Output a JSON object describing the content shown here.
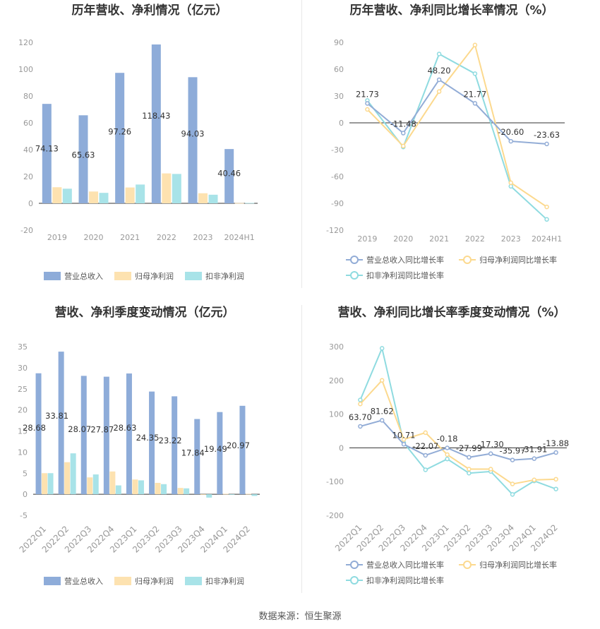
{
  "source_label": "数据来源：恒生聚源",
  "colors": {
    "revenue": "#8eacd9",
    "parent": "#fde2b0",
    "deducted": "#a8e3e8",
    "revenue_line": "#92acd6",
    "parent_line": "#fcd98e",
    "deducted_line": "#8fdbe0"
  },
  "chart_data": [
    {
      "type": "bar",
      "title": "历年营收、净利情况（亿元）",
      "categories": [
        "2019",
        "2020",
        "2021",
        "2022",
        "2023",
        "2024H1"
      ],
      "ylim": [
        -20,
        120
      ],
      "yticks": [
        -20,
        0,
        20,
        40,
        60,
        80,
        100,
        120
      ],
      "series": [
        {
          "name": "营业总收入",
          "values": [
            74.13,
            65.63,
            97.26,
            118.43,
            94.03,
            40.46
          ],
          "labels": [
            "74.13",
            "65.63",
            "97.26",
            "118.43",
            "94.03",
            "40.46"
          ]
        },
        {
          "name": "归母净利润",
          "values": [
            12,
            8.8,
            11.8,
            22.3,
            7.5,
            0.2
          ]
        },
        {
          "name": "扣非净利润",
          "values": [
            10.9,
            7.8,
            14,
            21.9,
            6.4,
            0.3
          ]
        }
      ]
    },
    {
      "type": "line",
      "title": "历年营收、净利同比增长率情况（%）",
      "categories": [
        "2019",
        "2020",
        "2021",
        "2022",
        "2023",
        "2024H1"
      ],
      "ylim": [
        -120,
        90
      ],
      "yticks": [
        -120,
        -90,
        -60,
        -30,
        0,
        30,
        60,
        90
      ],
      "series": [
        {
          "name": "营业总收入同比增长率",
          "values": [
            21.73,
            -11.48,
            48.2,
            21.77,
            -20.6,
            -23.63
          ],
          "labels": [
            "21.73",
            "-11.48",
            "48.20",
            "21.77",
            "-20.60",
            "-23.63"
          ]
        },
        {
          "name": "归母净利润同比增长率",
          "values": [
            15,
            -26,
            35,
            87,
            -67,
            -94
          ]
        },
        {
          "name": "扣非净利润同比增长率",
          "values": [
            25,
            -27,
            77,
            55,
            -71,
            -108
          ]
        }
      ]
    },
    {
      "type": "bar",
      "title": "营收、净利季度变动情况（亿元）",
      "categories": [
        "2022Q1",
        "2022Q2",
        "2022Q3",
        "2022Q4",
        "2023Q1",
        "2023Q2",
        "2023Q3",
        "2023Q4",
        "2024Q1",
        "2024Q2"
      ],
      "ylim": [
        -5,
        35
      ],
      "yticks": [
        -5,
        0,
        5,
        10,
        15,
        20,
        25,
        30,
        35
      ],
      "series": [
        {
          "name": "营业总收入",
          "values": [
            28.68,
            33.81,
            28.07,
            27.87,
            28.63,
            24.35,
            23.22,
            17.84,
            19.49,
            20.97
          ],
          "labels": [
            "28.68",
            "33.81",
            "28.07",
            "27.87",
            "28.63",
            "24.35",
            "23.22",
            "17.84",
            "19.49",
            "20.97"
          ]
        },
        {
          "name": "归母净利润",
          "values": [
            5,
            7.6,
            4,
            5.4,
            3.5,
            2.7,
            1.5,
            -0.1,
            0.1,
            0.1
          ]
        },
        {
          "name": "扣非净利润",
          "values": [
            5,
            9.7,
            4.7,
            2.1,
            3.3,
            2.4,
            1.4,
            -0.8,
            0,
            -0.4
          ]
        }
      ]
    },
    {
      "type": "line",
      "title": "营收、净利同比增长率季度变动情况（%）",
      "categories": [
        "2022Q1",
        "2022Q2",
        "2022Q3",
        "2022Q4",
        "2023Q1",
        "2023Q2",
        "2023Q3",
        "2023Q4",
        "2024Q1",
        "2024Q2"
      ],
      "ylim": [
        -200,
        300
      ],
      "yticks": [
        -200,
        -100,
        0,
        100,
        200,
        300
      ],
      "series": [
        {
          "name": "营业总收入同比增长率",
          "values": [
            63.7,
            81.62,
            10.71,
            -22.07,
            -0.18,
            -27.99,
            -17.3,
            -35.97,
            -31.91,
            -13.88
          ],
          "labels": [
            "63.70",
            "81.62",
            "10.71",
            "-22.07",
            "-0.18",
            "-27.99",
            "-17.30",
            "-35.97",
            "-31.91",
            "-13.88"
          ]
        },
        {
          "name": "归母净利润同比增长率",
          "values": [
            130,
            200,
            25,
            45,
            -20,
            -63,
            -63,
            -107,
            -95,
            -93
          ]
        },
        {
          "name": "扣非净利润同比增长率",
          "values": [
            142,
            295,
            15,
            -65,
            -33,
            -75,
            -70,
            -138,
            -98,
            -122
          ]
        }
      ]
    }
  ]
}
